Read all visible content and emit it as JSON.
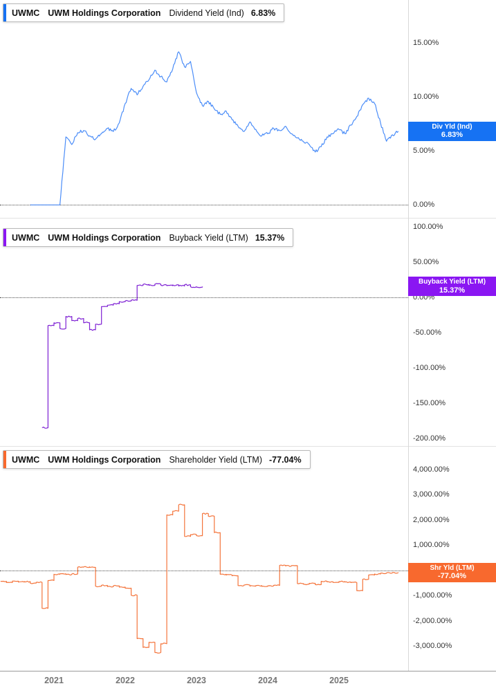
{
  "meta": {
    "ticker": "UWMC",
    "company": "UWM Holdings Corporation"
  },
  "x_axis": {
    "labels": [
      "2021",
      "2022",
      "2023",
      "2024",
      "2025"
    ]
  },
  "panels": [
    {
      "id": "dividend-yield",
      "header": {
        "ticker": "UWMC",
        "company": "UWM Holdings Corporation",
        "metric": "Dividend Yield (Ind)",
        "value": "6.83%"
      },
      "flag": {
        "line1": "Div Yld (Ind)",
        "line2": "6.83%"
      },
      "color": "#1672f3",
      "line_color": "#4b8df8"
    },
    {
      "id": "buyback-yield",
      "header": {
        "ticker": "UWMC",
        "company": "UWM Holdings Corporation",
        "metric": "Buyback Yield (LTM)",
        "value": "15.37%"
      },
      "flag": {
        "line1": "Buyback Yield (LTM)",
        "line2": "15.37%"
      },
      "color": "#8a16f2",
      "line_color": "#7d1fd3"
    },
    {
      "id": "shareholder-yield",
      "header": {
        "ticker": "UWMC",
        "company": "UWM Holdings Corporation",
        "metric": "Shareholder Yield (LTM)",
        "value": "-77.04%"
      },
      "flag": {
        "line1": "Shr Yld (LTM)",
        "line2": "-77.04%"
      },
      "color": "#f8692e",
      "line_color": "#f4743b"
    }
  ],
  "chart_data": [
    {
      "type": "line",
      "title": "UWMC Dividend Yield (Ind)",
      "xlabel": "",
      "ylabel": "Dividend Yield %",
      "unit": "%",
      "interpolation": "linear",
      "legend": "none",
      "grid": "off",
      "ylim": [
        -1.2,
        19
      ],
      "yticks": [
        15,
        10,
        5,
        0
      ],
      "last_value": 6.83,
      "x": [
        "2020-09",
        "2020-10",
        "2020-11",
        "2020-12",
        "2021-01",
        "2021-02",
        "2021-03",
        "2021-04",
        "2021-05",
        "2021-06",
        "2021-07",
        "2021-08",
        "2021-09",
        "2021-10",
        "2021-11",
        "2021-12",
        "2022-01",
        "2022-02",
        "2022-03",
        "2022-04",
        "2022-05",
        "2022-06",
        "2022-07",
        "2022-08",
        "2022-09",
        "2022-10",
        "2022-11",
        "2022-12",
        "2023-01",
        "2023-02",
        "2023-03",
        "2023-04",
        "2023-05",
        "2023-06",
        "2023-07",
        "2023-08",
        "2023-09",
        "2023-10",
        "2023-11",
        "2023-12",
        "2024-01",
        "2024-02",
        "2024-03",
        "2024-04",
        "2024-05",
        "2024-06",
        "2024-07",
        "2024-08",
        "2024-09",
        "2024-10",
        "2024-11",
        "2024-12",
        "2025-01",
        "2025-02",
        "2025-03",
        "2025-04",
        "2025-05",
        "2025-06",
        "2025-07",
        "2025-08",
        "2025-09",
        "2025-10",
        "2025-11"
      ],
      "values": [
        0,
        0,
        0,
        0,
        0,
        0,
        6.3,
        5.6,
        6.7,
        6.9,
        6.4,
        6.1,
        6.6,
        7.1,
        6.8,
        7.6,
        9.4,
        10.8,
        10.2,
        11.0,
        11.6,
        12.5,
        11.9,
        11.4,
        12.6,
        14.2,
        12.8,
        13.3,
        10.4,
        9.2,
        9.6,
        8.9,
        8.4,
        8.7,
        7.9,
        7.3,
        6.8,
        7.7,
        7.0,
        6.4,
        6.6,
        7.1,
        6.9,
        7.3,
        6.6,
        6.2,
        5.9,
        5.6,
        4.9,
        5.4,
        6.3,
        6.6,
        7.0,
        6.6,
        7.4,
        8.2,
        9.3,
        9.9,
        9.4,
        7.6,
        5.9,
        6.5,
        6.83
      ]
    },
    {
      "type": "line",
      "title": "UWMC Buyback Yield (LTM)",
      "xlabel": "",
      "ylabel": "Buyback Yield %",
      "unit": "%",
      "interpolation": "step",
      "legend": "none",
      "grid": "off",
      "ylim": [
        -211,
        113
      ],
      "yticks": [
        100,
        50,
        0,
        -50,
        -100,
        -150,
        -200
      ],
      "last_value": 15.37,
      "x": [
        "2020-11",
        "2020-12",
        "2021-01",
        "2021-02",
        "2021-03",
        "2021-04",
        "2021-05",
        "2021-06",
        "2021-07",
        "2021-08",
        "2021-09",
        "2021-10",
        "2021-11",
        "2021-12",
        "2022-01",
        "2022-02",
        "2022-03",
        "2022-04",
        "2022-05",
        "2022-06",
        "2022-07",
        "2022-08",
        "2022-09",
        "2022-10",
        "2022-11",
        "2022-12",
        "2023-01",
        "2023-02"
      ],
      "values": [
        -185,
        -40,
        -36,
        -44,
        -27,
        -33,
        -30,
        -36,
        -46,
        -38,
        -13,
        -11,
        -9,
        -6,
        -5,
        -4,
        17,
        18.5,
        17.2,
        18.8,
        17.5,
        16.8,
        17.8,
        16.2,
        17.9,
        15.2,
        14.6,
        15.37
      ]
    },
    {
      "type": "line",
      "title": "UWMC Shareholder Yield (LTM)",
      "xlabel": "",
      "ylabel": "Shareholder Yield %",
      "unit": "%",
      "interpolation": "step",
      "legend": "none",
      "grid": "off",
      "ylim": [
        -3975,
        4930
      ],
      "yticks": [
        4000,
        3000,
        2000,
        1000,
        0,
        -1000,
        -2000,
        -3000
      ],
      "last_value": -77.04,
      "x": [
        "2020-04",
        "2020-05",
        "2020-06",
        "2020-07",
        "2020-08",
        "2020-09",
        "2020-10",
        "2020-11",
        "2020-12",
        "2021-01",
        "2021-02",
        "2021-03",
        "2021-04",
        "2021-05",
        "2021-06",
        "2021-07",
        "2021-08",
        "2021-09",
        "2021-10",
        "2021-11",
        "2021-12",
        "2022-01",
        "2022-02",
        "2022-03",
        "2022-04",
        "2022-05",
        "2022-06",
        "2022-07",
        "2022-08",
        "2022-09",
        "2022-10",
        "2022-11",
        "2022-12",
        "2023-01",
        "2023-02",
        "2023-03",
        "2023-04",
        "2023-05",
        "2023-06",
        "2023-07",
        "2023-08",
        "2023-09",
        "2023-10",
        "2023-11",
        "2023-12",
        "2024-01",
        "2024-02",
        "2024-03",
        "2024-04",
        "2024-05",
        "2024-06",
        "2024-07",
        "2024-08",
        "2024-09",
        "2024-10",
        "2024-11",
        "2024-12",
        "2025-01",
        "2025-02",
        "2025-03",
        "2025-04",
        "2025-05",
        "2025-06",
        "2025-07",
        "2025-08",
        "2025-09",
        "2025-10",
        "2025-11"
      ],
      "values": [
        -430,
        -480,
        -420,
        -460,
        -440,
        -500,
        -470,
        -1500,
        -400,
        -150,
        -130,
        -160,
        -140,
        130,
        140,
        120,
        -620,
        -590,
        -640,
        -610,
        -660,
        -700,
        -980,
        -2700,
        -3050,
        -2850,
        -3250,
        -2900,
        2200,
        2350,
        2600,
        1350,
        1420,
        1380,
        2250,
        2150,
        1500,
        -150,
        -180,
        -210,
        -600,
        -580,
        -620,
        -600,
        -630,
        -610,
        -590,
        200,
        180,
        190,
        -520,
        -540,
        -510,
        -560,
        -430,
        -450,
        -470,
        -440,
        -460,
        -480,
        -800,
        -350,
        -180,
        -140,
        -110,
        -95,
        -85,
        -77.04
      ]
    }
  ]
}
